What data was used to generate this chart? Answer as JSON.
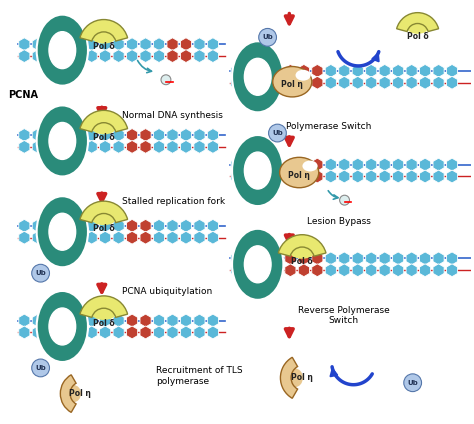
{
  "bg_color": "#ffffff",
  "teal_color": "#2a8b7a",
  "yellow_color": "#e8e870",
  "peach_color": "#e8c890",
  "blue_hex_color": "#5ab8d8",
  "red_hex_color": "#c04030",
  "ub_color": "#b0c8e8",
  "arrow_red": "#cc2222",
  "arrow_blue": "#2244cc",
  "labels": {
    "pcna": "PCNA",
    "pol_delta": "Pol δ",
    "pol_eta": "Pol η",
    "ub": "Ub",
    "step1": "Normal DNA synthesis",
    "step2": "Stalled replication fork",
    "step3": "PCNA ubiquitylation",
    "step4": "Recruitment of TLS\npolymerase",
    "step5": "Polymerase Switch",
    "step6": "Lesion Bypass",
    "step7": "Reverse Polymerase\nSwitch"
  }
}
